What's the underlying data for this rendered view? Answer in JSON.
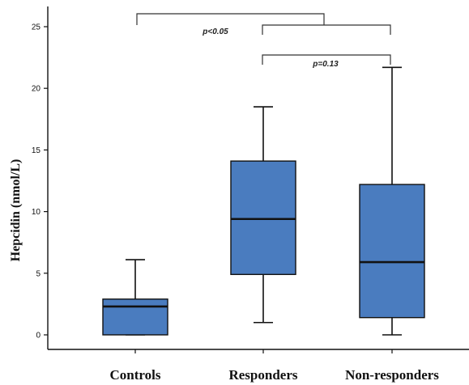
{
  "chart_data": {
    "type": "box",
    "ylabel": "Hepcidin (nmol/L)",
    "ylim": [
      0,
      26
    ],
    "yticks": [
      0,
      5,
      10,
      15,
      20,
      25
    ],
    "box_color": "#4a7cbf",
    "categories": [
      "Controls",
      "Responders",
      "Non-responders"
    ],
    "boxes": [
      {
        "category": "Controls",
        "min": 0,
        "q1": 0,
        "median": 2.3,
        "q3": 2.9,
        "max": 6.1
      },
      {
        "category": "Responders",
        "min": 1.0,
        "q1": 4.9,
        "median": 9.4,
        "q3": 14.1,
        "max": 18.5
      },
      {
        "category": "Non-responders",
        "min": 0,
        "q1": 1.4,
        "median": 5.9,
        "q3": 12.2,
        "max": 21.7
      }
    ],
    "annotations": [
      {
        "text": "p<0.05",
        "from": "Controls",
        "to": "Responders and Non-responders"
      },
      {
        "text": "p=0.13",
        "from": "Responders",
        "to": "Non-responders"
      }
    ]
  }
}
